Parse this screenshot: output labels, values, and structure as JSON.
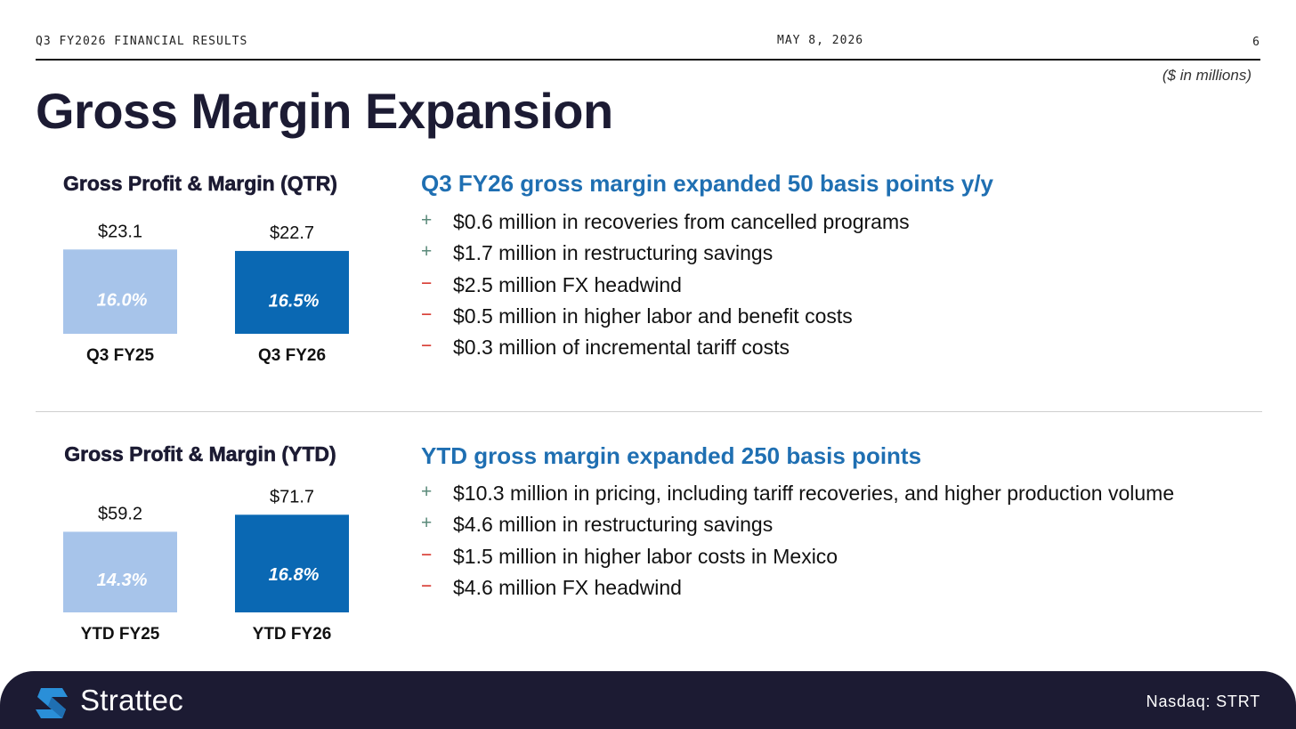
{
  "header": {
    "left": "Q3 FY2026 FINANCIAL RESULTS",
    "center": "MAY 8, 2026",
    "page_number": "6"
  },
  "units_note": "($ in millions)",
  "title": "Gross Margin Expansion",
  "quarter_section": {
    "headline": "Q3 FY26 gross margin expanded 50 basis points y/y",
    "bullets": [
      {
        "sign": "+",
        "text": "$0.6 million in recoveries from cancelled programs"
      },
      {
        "sign": "+",
        "text": "$1.7 million in restructuring savings"
      },
      {
        "sign": "−",
        "text": "$2.5 million FX headwind"
      },
      {
        "sign": "−",
        "text": "$0.5 million in higher labor and benefit costs"
      },
      {
        "sign": "−",
        "text": "$0.3 million of incremental tariff costs"
      }
    ]
  },
  "ytd_section": {
    "headline": "YTD gross margin expanded 250 basis points",
    "bullets": [
      {
        "sign": "+",
        "text": "$10.3 million in pricing, including tariff recoveries, and higher production volume"
      },
      {
        "sign": "+",
        "text": "$4.6 million in restructuring savings"
      },
      {
        "sign": "−",
        "text": "$1.5 million in higher labor costs in Mexico"
      },
      {
        "sign": "−",
        "text": "$4.6 million FX headwind"
      }
    ]
  },
  "chart_data": [
    {
      "type": "bar",
      "title": "Gross Profit & Margin (QTR)",
      "categories": [
        "Q3 FY25",
        "Q3 FY26"
      ],
      "values": [
        23.1,
        22.7
      ],
      "value_labels": [
        "$23.1",
        "$22.7"
      ],
      "margins": [
        "16.0%",
        "16.5%"
      ],
      "colors": [
        "#a7c4ea",
        "#0a68b3"
      ]
    },
    {
      "type": "bar",
      "title": "Gross Profit & Margin (YTD)",
      "categories": [
        "YTD FY25",
        "YTD FY26"
      ],
      "values": [
        59.2,
        71.7
      ],
      "value_labels": [
        "$59.2",
        "$71.7"
      ],
      "margins": [
        "14.3%",
        "16.8%"
      ],
      "colors": [
        "#a7c4ea",
        "#0a68b3"
      ]
    }
  ],
  "footer": {
    "brand": "Strattec",
    "ticker": "Nasdaq: STRT",
    "logo_icon": "strattec-logo-icon",
    "background": "#1c1b33"
  }
}
